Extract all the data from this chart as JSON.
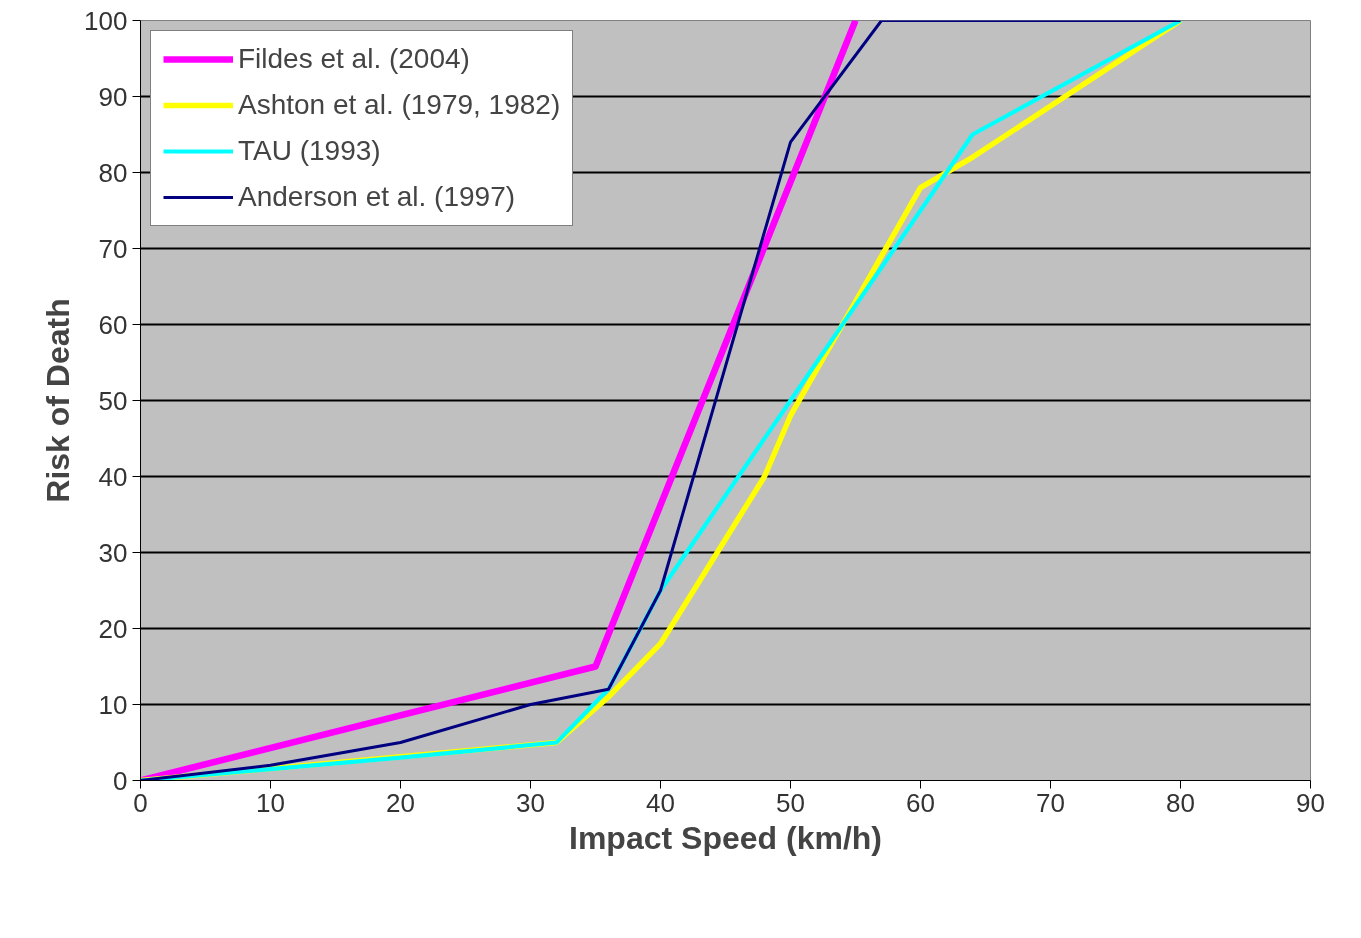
{
  "chart_data": {
    "type": "line",
    "xlabel": "Impact Speed (km/h)",
    "ylabel": "Risk of Death",
    "xlim": [
      0,
      90
    ],
    "xticks": [
      0,
      10,
      20,
      30,
      40,
      50,
      60,
      70,
      80,
      90
    ],
    "ylim": [
      0,
      100
    ],
    "yticks": [
      0,
      10,
      20,
      30,
      40,
      50,
      60,
      70,
      80,
      90,
      100
    ],
    "grid": "y",
    "legend": "top left",
    "marker": "none",
    "line_style": "solid",
    "series": [
      {
        "name": "Fildes et al. (2004)",
        "color": "#ff00ff",
        "x": [
          0,
          35,
          55
        ],
        "values": [
          0,
          15,
          100
        ]
      },
      {
        "name": "Ashton et al. (1979, 1982)",
        "color": "#ffff00",
        "x": [
          0,
          32,
          36,
          40,
          48,
          50,
          60,
          64,
          80
        ],
        "values": [
          0,
          5,
          11,
          18,
          40,
          48,
          78,
          82,
          100
        ]
      },
      {
        "name": "TAU (1993)",
        "color": "#00ffff",
        "x": [
          0,
          10,
          20,
          32,
          36,
          40,
          50,
          64,
          80
        ],
        "values": [
          0,
          1.5,
          3,
          5,
          12,
          25,
          50,
          85,
          100
        ]
      },
      {
        "name": "Anderson et al. (1997)",
        "color": "#000080",
        "x": [
          0,
          10,
          20,
          30,
          36,
          40,
          50,
          57,
          80
        ],
        "values": [
          0,
          2,
          5,
          10,
          12,
          25,
          84,
          100,
          100
        ]
      }
    ]
  }
}
